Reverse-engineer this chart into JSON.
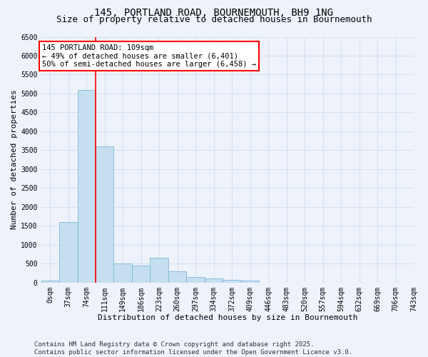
{
  "title_line1": "145, PORTLAND ROAD, BOURNEMOUTH, BH9 1NG",
  "title_line2": "Size of property relative to detached houses in Bournemouth",
  "xlabel": "Distribution of detached houses by size in Bournemouth",
  "ylabel": "Number of detached properties",
  "bin_labels": [
    "0sqm",
    "37sqm",
    "74sqm",
    "111sqm",
    "149sqm",
    "186sqm",
    "223sqm",
    "260sqm",
    "297sqm",
    "334sqm",
    "372sqm",
    "409sqm",
    "446sqm",
    "483sqm",
    "520sqm",
    "557sqm",
    "594sqm",
    "632sqm",
    "669sqm",
    "706sqm",
    "743sqm"
  ],
  "bar_values": [
    60,
    1600,
    5100,
    3600,
    500,
    450,
    650,
    300,
    150,
    100,
    70,
    50,
    0,
    0,
    0,
    0,
    0,
    0,
    0,
    0
  ],
  "bar_color": "#c5dff0",
  "bar_edge_color": "#7eb8d4",
  "vline_x": 2.5,
  "annotation_text": "145 PORTLAND ROAD: 109sqm\n← 49% of detached houses are smaller (6,401)\n50% of semi-detached houses are larger (6,458) →",
  "annotation_bbox_color": "white",
  "annotation_bbox_edge_color": "red",
  "ylim": [
    0,
    6500
  ],
  "yticks": [
    0,
    500,
    1000,
    1500,
    2000,
    2500,
    3000,
    3500,
    4000,
    4500,
    5000,
    5500,
    6000,
    6500
  ],
  "footer_text": "Contains HM Land Registry data © Crown copyright and database right 2025.\nContains public sector information licensed under the Open Government Licence v3.0.",
  "bg_color": "#eef2fb",
  "grid_color": "#d8e0f0",
  "title_fontsize": 10,
  "subtitle_fontsize": 9,
  "axis_label_fontsize": 8,
  "tick_fontsize": 7,
  "footer_fontsize": 6.5,
  "annotation_fontsize": 7.5
}
